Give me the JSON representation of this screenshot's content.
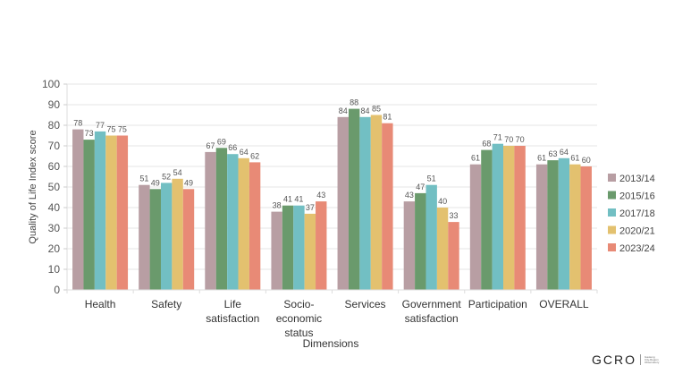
{
  "chart_data": {
    "type": "bar",
    "title": "",
    "xlabel": "Dimensions",
    "ylabel": "Quality of Life Index score",
    "ylim": [
      0,
      100
    ],
    "yticks": [
      0,
      10,
      20,
      30,
      40,
      50,
      60,
      70,
      80,
      90,
      100
    ],
    "grid": true,
    "legend_position": "right",
    "categories": [
      [
        "Health"
      ],
      [
        "Safety"
      ],
      [
        "Life",
        "satisfaction"
      ],
      [
        "Socio-",
        "economic",
        "status"
      ],
      [
        "Services"
      ],
      [
        "Government",
        "satisfaction"
      ],
      [
        "Participation"
      ],
      [
        "OVERALL"
      ]
    ],
    "series": [
      {
        "name": "2013/14",
        "color": "#b89ea3",
        "values": [
          78,
          51,
          67,
          38,
          84,
          43,
          61,
          61
        ]
      },
      {
        "name": "2015/16",
        "color": "#6a9a6c",
        "values": [
          73,
          49,
          69,
          41,
          88,
          47,
          68,
          63
        ]
      },
      {
        "name": "2017/18",
        "color": "#72bfc3",
        "values": [
          77,
          52,
          66,
          41,
          84,
          51,
          71,
          64
        ]
      },
      {
        "name": "2020/21",
        "color": "#e3c16f",
        "values": [
          75,
          54,
          64,
          37,
          85,
          40,
          70,
          61
        ]
      },
      {
        "name": "2023/24",
        "color": "#e88a76",
        "values": [
          75,
          49,
          62,
          43,
          81,
          33,
          70,
          60
        ]
      }
    ]
  },
  "logo": {
    "text": "GCRO",
    "subtitle": [
      "Gauteng",
      "City-Region",
      "Observatory"
    ]
  }
}
